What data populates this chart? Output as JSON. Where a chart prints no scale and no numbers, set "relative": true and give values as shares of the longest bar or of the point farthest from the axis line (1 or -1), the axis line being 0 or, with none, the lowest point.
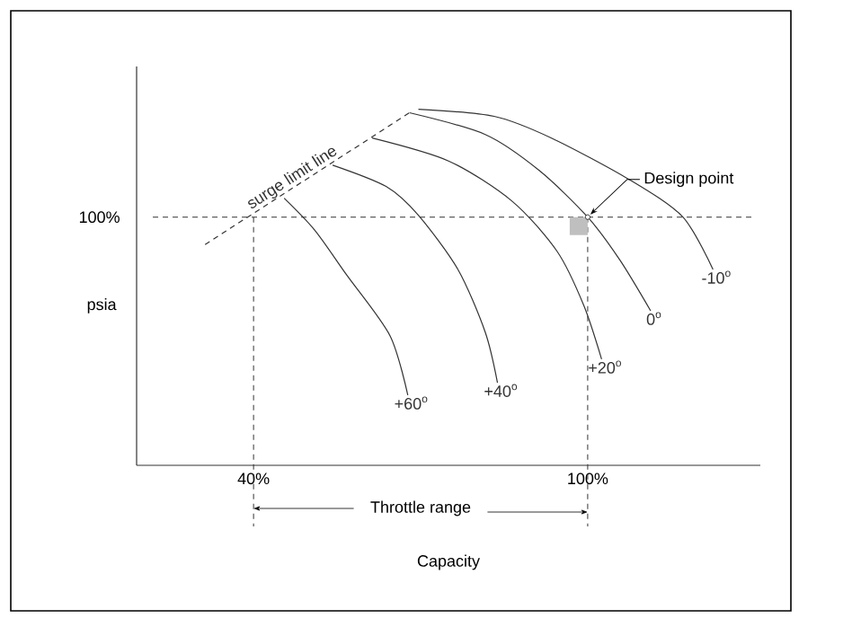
{
  "chart_data": {
    "type": "line",
    "xlabel": "Capacity",
    "ylabel": "psia",
    "relative": true,
    "xlim": [
      19,
      131
    ],
    "xticks": [
      {
        "value": 40,
        "label": "40%"
      },
      {
        "value": 100,
        "label": "100%"
      }
    ],
    "tick_labels": "x",
    "grid": false,
    "legend": false,
    "marker": "none",
    "series": [
      {
        "name": "surge limit line",
        "color": "#333333",
        "line_style": "dashed",
        "x": [
          31.3,
          68
        ],
        "values": [
          0.62,
          0.99
        ]
      },
      {
        "name": "+60$^{o}$",
        "color": "#333333",
        "line_style": "solid",
        "x": [
          45.5,
          51,
          56.7,
          64.5,
          67.7
        ],
        "values": [
          0.75,
          0.66,
          0.535,
          0.364,
          0.197
        ]
      },
      {
        "name": "+40$^{o}$",
        "color": "#333333",
        "line_style": "solid",
        "x": [
          54.2,
          63.8,
          69.6,
          76.7,
          81.6,
          83.8
        ],
        "values": [
          0.843,
          0.783,
          0.702,
          0.55,
          0.374,
          0.232
        ]
      },
      {
        "name": "+20$^{o}$",
        "color": "#333333",
        "line_style": "solid",
        "x": [
          61.3,
          75.1,
          86.4,
          94.5,
          99.3,
          102.5
        ],
        "values": [
          0.919,
          0.854,
          0.742,
          0.601,
          0.449,
          0.298
        ]
      },
      {
        "name": "0$^{o}$",
        "color": "#333333",
        "line_style": "solid",
        "x": [
          68,
          81.6,
          91.3,
          100,
          105.8,
          111.3
        ],
        "values": [
          0.99,
          0.929,
          0.828,
          0.697,
          0.576,
          0.434
        ]
      },
      {
        "name": "-10$^{o}$",
        "color": "#333333",
        "line_style": "solid",
        "x": [
          69.6,
          83.2,
          93.5,
          107.4,
          117.1,
          122.5
        ],
        "values": [
          1.0,
          0.98,
          0.919,
          0.803,
          0.697,
          0.55
        ]
      }
    ],
    "ref_lines": [
      {
        "axis": "y",
        "value": 0.697,
        "line_style": "dashed",
        "color": "#333333"
      },
      {
        "axis": "x",
        "value": 40,
        "line_style": "dashed",
        "color": "#333333"
      },
      {
        "axis": "x",
        "value": 100,
        "line_style": "dashed",
        "color": "#333333"
      }
    ],
    "annotations": [
      {
        "text": "Design point",
        "x": 100,
        "y": 0.697
      },
      "Throttle range",
      "100%"
    ]
  }
}
